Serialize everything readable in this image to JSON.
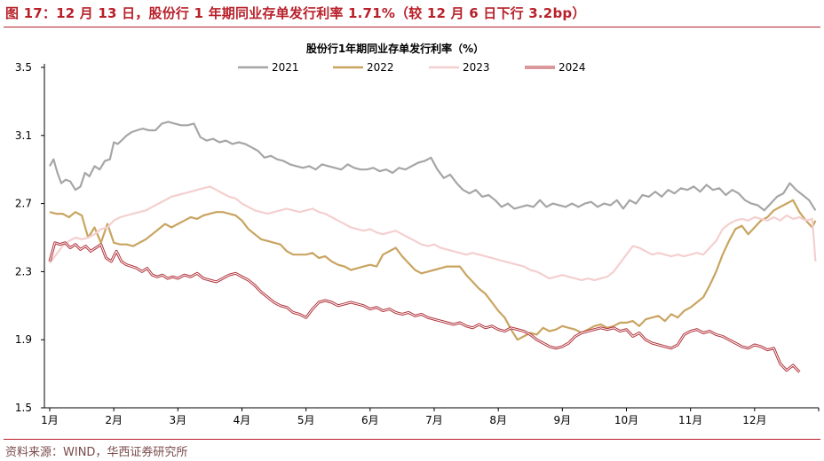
{
  "header": {
    "figure_title": "图 17：12 月 13 日，股份行 1 年期同业存单发行利率 1.71%（较 12 月 6 日下行 3.2bp）"
  },
  "footer": {
    "source": "资料来源：WIND，华西证券研究所"
  },
  "chart_data": {
    "type": "line",
    "title": "股份行1年期同业存单发行利率（%）",
    "xlabel": "",
    "ylabel": "",
    "ylim": [
      1.5,
      3.5
    ],
    "yticks": [
      "3.5",
      "3.1",
      "2.7",
      "2.3",
      "1.9",
      "1.5"
    ],
    "ytick_values": [
      3.5,
      3.1,
      2.7,
      2.3,
      1.9,
      1.5
    ],
    "months": [
      "1月",
      "2月",
      "3月",
      "4月",
      "5月",
      "6月",
      "7月",
      "8月",
      "9月",
      "10月",
      "11月",
      "12月"
    ],
    "x_domain": [
      0,
      12
    ],
    "legend_position": "top-center",
    "series": [
      {
        "name": "2021",
        "color": "#a6a6a6",
        "x": [
          0.0,
          0.06,
          0.12,
          0.18,
          0.25,
          0.32,
          0.4,
          0.48,
          0.55,
          0.62,
          0.7,
          0.78,
          0.86,
          0.94,
          1.0,
          1.06,
          1.12,
          1.2,
          1.28,
          1.36,
          1.45,
          1.55,
          1.65,
          1.75,
          1.85,
          1.95,
          2.05,
          2.15,
          2.25,
          2.35,
          2.45,
          2.55,
          2.65,
          2.75,
          2.85,
          2.95,
          3.05,
          3.15,
          3.25,
          3.35,
          3.45,
          3.55,
          3.65,
          3.75,
          3.85,
          3.95,
          4.05,
          4.15,
          4.25,
          4.35,
          4.45,
          4.55,
          4.65,
          4.75,
          4.85,
          4.95,
          5.05,
          5.15,
          5.25,
          5.35,
          5.45,
          5.55,
          5.65,
          5.75,
          5.85,
          5.95,
          6.05,
          6.15,
          6.25,
          6.35,
          6.45,
          6.55,
          6.65,
          6.75,
          6.85,
          6.95,
          7.05,
          7.15,
          7.25,
          7.35,
          7.45,
          7.55,
          7.65,
          7.75,
          7.85,
          7.95,
          8.05,
          8.15,
          8.25,
          8.35,
          8.45,
          8.55,
          8.65,
          8.75,
          8.85,
          8.95,
          9.05,
          9.15,
          9.25,
          9.35,
          9.45,
          9.55,
          9.65,
          9.75,
          9.85,
          9.95,
          10.05,
          10.15,
          10.25,
          10.35,
          10.45,
          10.55,
          10.65,
          10.75,
          10.85,
          10.95,
          11.05,
          11.15,
          11.25,
          11.35,
          11.45,
          11.55,
          11.65,
          11.75,
          11.85,
          11.95
        ],
        "values": [
          2.92,
          2.96,
          2.88,
          2.82,
          2.84,
          2.83,
          2.78,
          2.8,
          2.88,
          2.86,
          2.92,
          2.9,
          2.95,
          2.96,
          3.06,
          3.05,
          3.07,
          3.1,
          3.12,
          3.13,
          3.14,
          3.13,
          3.13,
          3.17,
          3.18,
          3.17,
          3.16,
          3.16,
          3.17,
          3.09,
          3.07,
          3.08,
          3.06,
          3.07,
          3.05,
          3.06,
          3.05,
          3.03,
          3.01,
          2.97,
          2.98,
          2.96,
          2.95,
          2.93,
          2.92,
          2.91,
          2.92,
          2.9,
          2.93,
          2.92,
          2.91,
          2.9,
          2.93,
          2.91,
          2.9,
          2.9,
          2.91,
          2.89,
          2.9,
          2.88,
          2.91,
          2.9,
          2.92,
          2.94,
          2.95,
          2.97,
          2.9,
          2.85,
          2.87,
          2.82,
          2.78,
          2.76,
          2.78,
          2.74,
          2.75,
          2.72,
          2.68,
          2.7,
          2.67,
          2.68,
          2.69,
          2.68,
          2.72,
          2.68,
          2.7,
          2.69,
          2.68,
          2.7,
          2.68,
          2.7,
          2.71,
          2.68,
          2.7,
          2.69,
          2.72,
          2.67,
          2.72,
          2.7,
          2.75,
          2.74,
          2.77,
          2.74,
          2.78,
          2.76,
          2.79,
          2.78,
          2.8,
          2.77,
          2.81,
          2.78,
          2.79,
          2.75,
          2.78,
          2.76,
          2.72,
          2.7,
          2.69,
          2.66,
          2.7,
          2.74,
          2.76,
          2.82,
          2.78,
          2.75,
          2.72,
          2.66
        ]
      },
      {
        "name": "2022",
        "color": "#c9a461",
        "x": [
          0.0,
          0.1,
          0.2,
          0.3,
          0.4,
          0.5,
          0.6,
          0.7,
          0.8,
          0.9,
          1.0,
          1.1,
          1.2,
          1.3,
          1.4,
          1.5,
          1.6,
          1.7,
          1.8,
          1.9,
          2.0,
          2.1,
          2.2,
          2.3,
          2.4,
          2.5,
          2.6,
          2.7,
          2.8,
          2.9,
          3.0,
          3.1,
          3.2,
          3.3,
          3.4,
          3.5,
          3.6,
          3.7,
          3.8,
          3.9,
          4.0,
          4.1,
          4.2,
          4.3,
          4.4,
          4.5,
          4.6,
          4.7,
          4.8,
          4.9,
          5.0,
          5.1,
          5.2,
          5.3,
          5.4,
          5.5,
          5.6,
          5.7,
          5.8,
          5.9,
          6.0,
          6.1,
          6.2,
          6.3,
          6.4,
          6.5,
          6.6,
          6.7,
          6.8,
          6.9,
          7.0,
          7.1,
          7.2,
          7.3,
          7.4,
          7.5,
          7.6,
          7.7,
          7.8,
          7.9,
          8.0,
          8.1,
          8.2,
          8.3,
          8.4,
          8.5,
          8.6,
          8.7,
          8.8,
          8.9,
          9.0,
          9.1,
          9.2,
          9.3,
          9.4,
          9.5,
          9.6,
          9.7,
          9.8,
          9.9,
          10.0,
          10.1,
          10.2,
          10.3,
          10.4,
          10.5,
          10.6,
          10.7,
          10.8,
          10.9,
          11.0,
          11.1,
          11.2,
          11.3,
          11.4,
          11.5,
          11.6,
          11.7,
          11.8,
          11.9,
          11.95
        ],
        "values": [
          2.65,
          2.64,
          2.64,
          2.62,
          2.65,
          2.63,
          2.5,
          2.56,
          2.47,
          2.58,
          2.47,
          2.46,
          2.46,
          2.45,
          2.47,
          2.49,
          2.52,
          2.55,
          2.58,
          2.56,
          2.58,
          2.6,
          2.62,
          2.61,
          2.63,
          2.64,
          2.65,
          2.65,
          2.64,
          2.63,
          2.6,
          2.55,
          2.52,
          2.49,
          2.48,
          2.47,
          2.46,
          2.42,
          2.4,
          2.4,
          2.4,
          2.41,
          2.38,
          2.39,
          2.36,
          2.34,
          2.33,
          2.31,
          2.32,
          2.33,
          2.34,
          2.33,
          2.4,
          2.42,
          2.44,
          2.39,
          2.35,
          2.31,
          2.29,
          2.3,
          2.31,
          2.32,
          2.33,
          2.33,
          2.33,
          2.28,
          2.24,
          2.2,
          2.17,
          2.12,
          2.07,
          2.03,
          1.96,
          1.9,
          1.92,
          1.94,
          1.93,
          1.97,
          1.95,
          1.96,
          1.98,
          1.97,
          1.96,
          1.94,
          1.96,
          1.98,
          1.99,
          1.97,
          1.98,
          2.0,
          2.0,
          2.01,
          1.98,
          2.02,
          2.03,
          2.04,
          2.01,
          2.05,
          2.03,
          2.07,
          2.09,
          2.12,
          2.15,
          2.22,
          2.3,
          2.4,
          2.48,
          2.55,
          2.57,
          2.52,
          2.56,
          2.6,
          2.62,
          2.66,
          2.68,
          2.7,
          2.72,
          2.65,
          2.6,
          2.56,
          2.6
        ]
      },
      {
        "name": "2023",
        "color": "#f5cfcf",
        "x": [
          0.0,
          0.1,
          0.2,
          0.3,
          0.4,
          0.5,
          0.6,
          0.7,
          0.8,
          0.9,
          1.0,
          1.1,
          1.2,
          1.3,
          1.4,
          1.5,
          1.6,
          1.7,
          1.8,
          1.9,
          2.0,
          2.1,
          2.2,
          2.3,
          2.4,
          2.5,
          2.6,
          2.7,
          2.8,
          2.9,
          3.0,
          3.1,
          3.2,
          3.3,
          3.4,
          3.5,
          3.6,
          3.7,
          3.8,
          3.9,
          4.0,
          4.1,
          4.2,
          4.3,
          4.4,
          4.5,
          4.6,
          4.7,
          4.8,
          4.9,
          5.0,
          5.1,
          5.2,
          5.3,
          5.4,
          5.5,
          5.6,
          5.7,
          5.8,
          5.9,
          6.0,
          6.1,
          6.2,
          6.3,
          6.4,
          6.5,
          6.6,
          6.7,
          6.8,
          6.9,
          7.0,
          7.1,
          7.2,
          7.3,
          7.4,
          7.5,
          7.6,
          7.7,
          7.8,
          7.9,
          8.0,
          8.1,
          8.2,
          8.3,
          8.4,
          8.5,
          8.6,
          8.7,
          8.8,
          8.9,
          9.0,
          9.1,
          9.2,
          9.3,
          9.4,
          9.5,
          9.6,
          9.7,
          9.8,
          9.9,
          10.0,
          10.1,
          10.2,
          10.3,
          10.4,
          10.5,
          10.6,
          10.7,
          10.8,
          10.9,
          11.0,
          11.1,
          11.2,
          11.3,
          11.4,
          11.5,
          11.6,
          11.7,
          11.8,
          11.9,
          11.95
        ],
        "values": [
          2.35,
          2.4,
          2.45,
          2.48,
          2.5,
          2.49,
          2.5,
          2.52,
          2.55,
          2.56,
          2.6,
          2.62,
          2.63,
          2.64,
          2.65,
          2.66,
          2.68,
          2.7,
          2.72,
          2.74,
          2.75,
          2.76,
          2.77,
          2.78,
          2.79,
          2.8,
          2.78,
          2.76,
          2.74,
          2.73,
          2.7,
          2.68,
          2.66,
          2.65,
          2.64,
          2.65,
          2.66,
          2.67,
          2.66,
          2.65,
          2.66,
          2.67,
          2.65,
          2.64,
          2.62,
          2.6,
          2.58,
          2.56,
          2.55,
          2.54,
          2.55,
          2.53,
          2.52,
          2.53,
          2.54,
          2.52,
          2.5,
          2.48,
          2.46,
          2.45,
          2.46,
          2.44,
          2.43,
          2.42,
          2.41,
          2.4,
          2.41,
          2.4,
          2.39,
          2.38,
          2.37,
          2.36,
          2.35,
          2.34,
          2.33,
          2.31,
          2.3,
          2.28,
          2.26,
          2.27,
          2.28,
          2.27,
          2.26,
          2.25,
          2.26,
          2.25,
          2.26,
          2.27,
          2.3,
          2.35,
          2.4,
          2.45,
          2.44,
          2.42,
          2.4,
          2.41,
          2.4,
          2.39,
          2.4,
          2.39,
          2.4,
          2.41,
          2.4,
          2.44,
          2.48,
          2.55,
          2.58,
          2.6,
          2.61,
          2.6,
          2.62,
          2.61,
          2.6,
          2.62,
          2.6,
          2.63,
          2.61,
          2.62,
          2.6,
          2.61,
          2.36
        ]
      },
      {
        "name": "2024",
        "color": "#b0323a",
        "x": [
          0.0,
          0.08,
          0.16,
          0.24,
          0.32,
          0.4,
          0.48,
          0.56,
          0.64,
          0.72,
          0.8,
          0.88,
          0.96,
          1.04,
          1.12,
          1.2,
          1.28,
          1.36,
          1.44,
          1.52,
          1.6,
          1.68,
          1.76,
          1.84,
          1.92,
          2.0,
          2.1,
          2.2,
          2.3,
          2.4,
          2.5,
          2.6,
          2.7,
          2.8,
          2.9,
          3.0,
          3.1,
          3.2,
          3.3,
          3.4,
          3.5,
          3.6,
          3.7,
          3.8,
          3.9,
          4.0,
          4.1,
          4.2,
          4.3,
          4.4,
          4.5,
          4.6,
          4.7,
          4.8,
          4.9,
          5.0,
          5.1,
          5.2,
          5.3,
          5.4,
          5.5,
          5.6,
          5.7,
          5.8,
          5.9,
          6.0,
          6.1,
          6.2,
          6.3,
          6.4,
          6.5,
          6.6,
          6.7,
          6.8,
          6.9,
          7.0,
          7.1,
          7.2,
          7.3,
          7.4,
          7.5,
          7.6,
          7.7,
          7.8,
          7.9,
          8.0,
          8.1,
          8.2,
          8.3,
          8.4,
          8.5,
          8.6,
          8.7,
          8.8,
          8.9,
          9.0,
          9.1,
          9.2,
          9.3,
          9.4,
          9.5,
          9.6,
          9.7,
          9.8,
          9.9,
          10.0,
          10.1,
          10.2,
          10.3,
          10.4,
          10.5,
          10.6,
          10.7,
          10.8,
          10.9,
          11.0,
          11.1,
          11.2,
          11.3,
          11.4,
          11.5,
          11.6,
          11.7
        ],
        "values": [
          2.36,
          2.47,
          2.46,
          2.47,
          2.44,
          2.46,
          2.43,
          2.45,
          2.42,
          2.44,
          2.46,
          2.38,
          2.36,
          2.42,
          2.36,
          2.34,
          2.33,
          2.32,
          2.3,
          2.32,
          2.28,
          2.27,
          2.28,
          2.26,
          2.27,
          2.26,
          2.28,
          2.27,
          2.29,
          2.26,
          2.25,
          2.24,
          2.26,
          2.28,
          2.29,
          2.27,
          2.25,
          2.22,
          2.18,
          2.15,
          2.12,
          2.1,
          2.09,
          2.06,
          2.05,
          2.03,
          2.08,
          2.12,
          2.13,
          2.12,
          2.1,
          2.11,
          2.12,
          2.11,
          2.1,
          2.08,
          2.09,
          2.07,
          2.08,
          2.06,
          2.05,
          2.06,
          2.04,
          2.05,
          2.03,
          2.02,
          2.01,
          2.0,
          1.99,
          2.0,
          1.98,
          1.97,
          1.99,
          1.97,
          1.98,
          1.96,
          1.95,
          1.97,
          1.96,
          1.95,
          1.93,
          1.9,
          1.88,
          1.86,
          1.85,
          1.86,
          1.88,
          1.92,
          1.94,
          1.95,
          1.96,
          1.97,
          1.96,
          1.97,
          1.95,
          1.96,
          1.92,
          1.94,
          1.9,
          1.88,
          1.87,
          1.86,
          1.85,
          1.87,
          1.93,
          1.95,
          1.96,
          1.94,
          1.95,
          1.93,
          1.92,
          1.9,
          1.88,
          1.86,
          1.85,
          1.87,
          1.86,
          1.84,
          1.85,
          1.76,
          1.72,
          1.75,
          1.71
        ]
      }
    ]
  }
}
